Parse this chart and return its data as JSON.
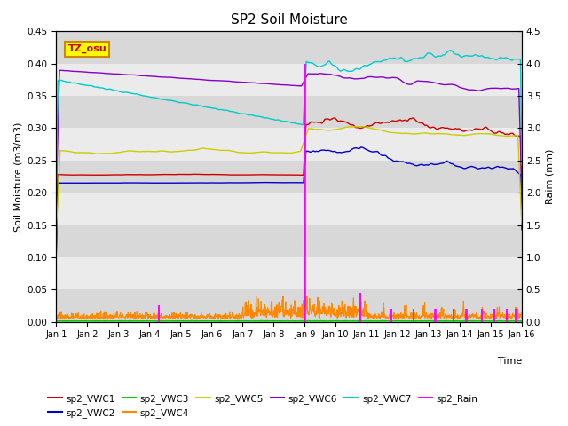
{
  "title": "SP2 Soil Moisture",
  "xlabel": "Time",
  "ylabel_left": "Soil Moisture (m3/m3)",
  "ylabel_right": "Raim (mm)",
  "ylim_left": [
    0.0,
    0.45
  ],
  "ylim_right": [
    0.0,
    4.5
  ],
  "bg_dark": "#d8d8d8",
  "bg_light": "#ebebeb",
  "legend_box_label": "TZ_osu",
  "legend_box_color": "#ffff00",
  "legend_box_border": "#cc8800",
  "series": {
    "sp2_VWC1": {
      "color": "#cc0000",
      "lw": 1.0
    },
    "sp2_VWC2": {
      "color": "#0000cc",
      "lw": 1.0
    },
    "sp2_VWC3": {
      "color": "#00cc00",
      "lw": 1.0
    },
    "sp2_VWC4": {
      "color": "#ff8800",
      "lw": 0.8
    },
    "sp2_VWC5": {
      "color": "#cccc00",
      "lw": 1.0
    },
    "sp2_VWC6": {
      "color": "#8800cc",
      "lw": 1.0
    },
    "sp2_VWC7": {
      "color": "#00cccc",
      "lw": 1.0
    },
    "sp2_Rain": {
      "color": "#ff00ff",
      "lw": 1.2
    }
  },
  "tick_labels": [
    "Jan 1",
    "Jan 2",
    "Jan 3",
    "Jan 4",
    "Jan 5",
    "Jan 6",
    "Jan 7",
    "Jan 8",
    "Jan 9",
    "Jan 10",
    "Jan 11",
    "Jan 12",
    "Jan 13",
    "Jan 14",
    "Jan 15",
    "Jan 16"
  ],
  "yticks_left": [
    0.0,
    0.05,
    0.1,
    0.15,
    0.2,
    0.25,
    0.3,
    0.35,
    0.4,
    0.45
  ],
  "yticks_right": [
    0.0,
    0.5,
    1.0,
    1.5,
    2.0,
    2.5,
    3.0,
    3.5,
    4.0,
    4.5
  ]
}
